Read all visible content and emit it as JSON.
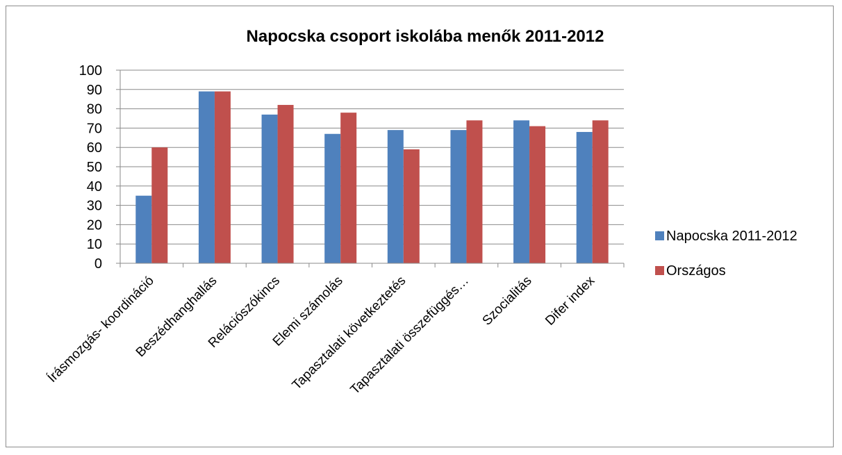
{
  "chart_data": {
    "type": "bar",
    "title": "Napocska csoport iskolába menők 2011-2012",
    "xlabel": "",
    "ylabel": "",
    "ylim": [
      0,
      100
    ],
    "yticks": [
      0,
      10,
      20,
      30,
      40,
      50,
      60,
      70,
      80,
      90,
      100
    ],
    "grid": true,
    "legend_position": "right",
    "categories": [
      "Írásmozgás- koordináció",
      "Beszédhanghallás",
      "Relációszókincs",
      "Elemi számolás",
      "Tapasztalati következtetés",
      "Tapasztalati összefüggés…",
      "Szocialitás",
      "Difer index"
    ],
    "series": [
      {
        "name": "Napocska 2011-2012",
        "color": "#4f81bd",
        "values": [
          35,
          89,
          77,
          67,
          69,
          69,
          74,
          68
        ]
      },
      {
        "name": "Országos",
        "color": "#c0504d",
        "values": [
          60,
          89,
          82,
          78,
          59,
          74,
          71,
          74
        ]
      }
    ]
  }
}
